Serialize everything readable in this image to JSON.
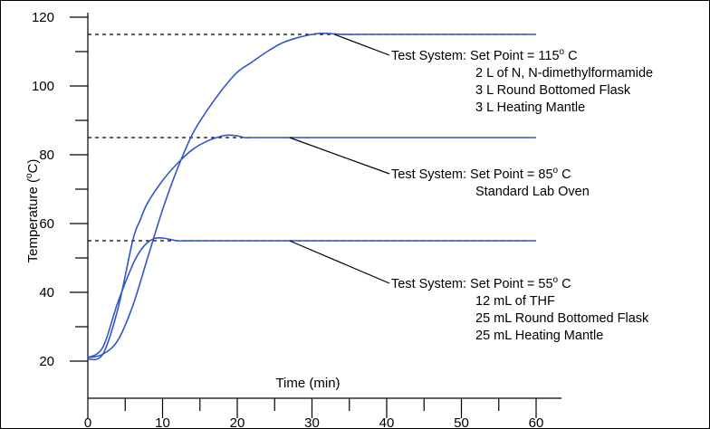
{
  "chart_data": {
    "type": "line",
    "title": "",
    "xlabel": "Time (min)",
    "ylabel": "Temperature (oC)",
    "ylabel_parts": {
      "main": "Temperature (",
      "sup": "o",
      "end": "C)"
    },
    "xlim": [
      0,
      60
    ],
    "ylim": [
      15,
      122
    ],
    "x_ticks": [
      0,
      10,
      20,
      30,
      40,
      50,
      60
    ],
    "y_ticks": [
      20,
      40,
      60,
      80,
      100,
      120
    ],
    "grid": false,
    "legend": "none",
    "line_color": "#3355cc",
    "series": [
      {
        "setpoint": 115,
        "x": [
          0,
          2,
          4,
          6,
          8,
          10,
          12,
          14,
          16,
          18,
          20,
          22,
          24,
          26,
          28,
          30,
          31,
          32,
          34,
          36,
          40,
          50,
          60
        ],
        "y": [
          21,
          22,
          26,
          36,
          50,
          64,
          76,
          86,
          93,
          99,
          104,
          107,
          110,
          112.5,
          114,
          115,
          115.3,
          115.3,
          115,
          115,
          115,
          115,
          115
        ]
      },
      {
        "setpoint": 85,
        "x": [
          0,
          2,
          4,
          6,
          7,
          8,
          10,
          12,
          14,
          16,
          18,
          19,
          20,
          21,
          22,
          30,
          40,
          50,
          60
        ],
        "y": [
          20.5,
          22,
          35,
          55,
          61,
          66,
          72.5,
          77.5,
          81.5,
          84,
          85.5,
          85.7,
          85.5,
          85,
          85,
          85,
          85,
          85,
          85
        ]
      },
      {
        "setpoint": 55,
        "x": [
          0,
          2,
          4,
          6,
          7,
          8,
          9,
          10,
          11,
          12,
          14,
          20,
          30,
          40,
          50,
          60
        ],
        "y": [
          21,
          24,
          37,
          48,
          52,
          54.5,
          55.7,
          55.8,
          55.4,
          55,
          55,
          55,
          55,
          55,
          55,
          55
        ]
      }
    ],
    "setpoint_lines": [
      {
        "y": 115,
        "x": [
          0,
          59
        ]
      },
      {
        "y": 85,
        "x": [
          0,
          59
        ]
      },
      {
        "y": 55,
        "x": [
          0,
          59
        ]
      }
    ],
    "annotations": [
      {
        "anchor": [
          33,
          115
        ],
        "lines": [
          "Test System: Set Point = 115o C",
          "2 L of N, N-dimethylformamide",
          "3 L Round Bottomed Flask",
          "3 L Heating Mantle"
        ]
      },
      {
        "anchor": [
          27,
          85
        ],
        "lines": [
          "Test System: Set Point = 85o C",
          "Standard Lab Oven"
        ]
      },
      {
        "anchor": [
          27,
          55
        ],
        "lines": [
          "Test System: Set Point = 55o C",
          "12 mL of THF",
          "25 mL Round Bottomed Flask",
          "25 mL Heating Mantle"
        ]
      }
    ]
  }
}
